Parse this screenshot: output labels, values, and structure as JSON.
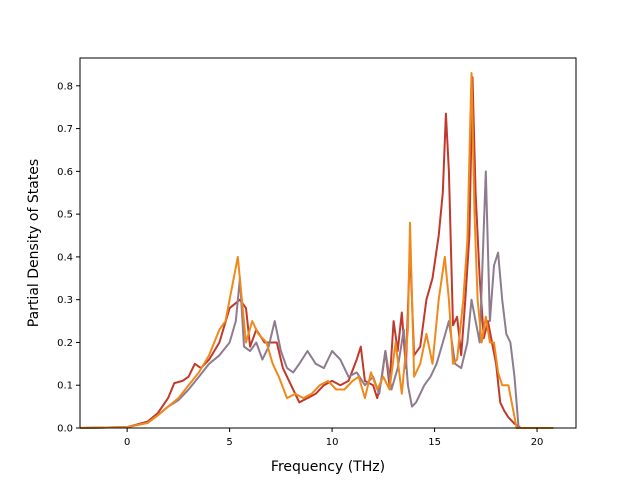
{
  "chart_data": {
    "type": "line",
    "title": "",
    "xlabel": "Frequency (THz)",
    "ylabel": "Partial Density of States",
    "xlim": [
      -2.3,
      21.9
    ],
    "ylim": [
      0.0,
      0.865
    ],
    "xticks": [
      0,
      5,
      10,
      15,
      20
    ],
    "xtick_labels": [
      "0",
      "5",
      "10",
      "15",
      "20"
    ],
    "yticks": [
      0.0,
      0.1,
      0.2,
      0.3,
      0.4,
      0.5,
      0.6,
      0.7,
      0.8
    ],
    "ytick_labels": [
      "0.0",
      "0.1",
      "0.2",
      "0.3",
      "0.4",
      "0.5",
      "0.6",
      "0.7",
      "0.8"
    ],
    "grid": false,
    "legend": "none",
    "series": [
      {
        "color": "#c0392b",
        "x": [
          -2.3,
          0,
          1,
          1.5,
          2,
          2.3,
          2.7,
          3.0,
          3.3,
          3.6,
          4.0,
          4.5,
          5.0,
          5.5,
          5.8,
          6.0,
          6.3,
          6.7,
          7.0,
          7.3,
          7.6,
          8.0,
          8.4,
          8.8,
          9.2,
          9.6,
          10.0,
          10.4,
          10.8,
          11.2,
          11.4,
          11.6,
          12.0,
          12.2,
          12.4,
          12.6,
          12.8,
          13.0,
          13.2,
          13.4,
          13.6,
          13.8,
          14.0,
          14.3,
          14.6,
          14.9,
          15.2,
          15.4,
          15.55,
          15.7,
          15.9,
          16.1,
          16.3,
          16.5,
          16.7,
          16.85,
          17.0,
          17.2,
          17.4,
          17.6,
          17.8,
          18.0,
          18.2,
          18.4,
          18.6,
          18.9,
          19.2,
          20.8
        ],
        "y": [
          0,
          0.002,
          0.015,
          0.035,
          0.07,
          0.105,
          0.11,
          0.12,
          0.15,
          0.14,
          0.16,
          0.2,
          0.28,
          0.3,
          0.28,
          0.19,
          0.23,
          0.2,
          0.2,
          0.2,
          0.14,
          0.1,
          0.06,
          0.07,
          0.08,
          0.1,
          0.11,
          0.1,
          0.11,
          0.16,
          0.19,
          0.11,
          0.1,
          0.07,
          0.11,
          0.18,
          0.1,
          0.25,
          0.18,
          0.27,
          0.14,
          0.42,
          0.17,
          0.19,
          0.3,
          0.35,
          0.45,
          0.55,
          0.735,
          0.6,
          0.24,
          0.26,
          0.17,
          0.3,
          0.45,
          0.82,
          0.55,
          0.35,
          0.21,
          0.25,
          0.2,
          0.15,
          0.06,
          0.04,
          0.025,
          0.01,
          0.0,
          0.0
        ]
      },
      {
        "color": "#8e7b8e",
        "x": [
          -2.3,
          0,
          1,
          1.5,
          2,
          2.5,
          3.0,
          3.5,
          4.0,
          4.5,
          5.0,
          5.3,
          5.5,
          5.7,
          6.0,
          6.3,
          6.6,
          6.9,
          7.2,
          7.5,
          7.8,
          8.1,
          8.4,
          8.8,
          9.2,
          9.6,
          10.0,
          10.4,
          10.8,
          11.2,
          11.6,
          12.0,
          12.3,
          12.6,
          12.9,
          13.2,
          13.5,
          13.7,
          13.9,
          14.1,
          14.3,
          14.5,
          14.8,
          15.1,
          15.4,
          15.7,
          16.0,
          16.3,
          16.6,
          16.8,
          17.0,
          17.2,
          17.5,
          17.7,
          17.9,
          18.1,
          18.3,
          18.5,
          18.7,
          18.9,
          19.1,
          20.8
        ],
        "y": [
          0,
          0.002,
          0.012,
          0.03,
          0.05,
          0.065,
          0.09,
          0.12,
          0.15,
          0.17,
          0.2,
          0.25,
          0.35,
          0.19,
          0.18,
          0.2,
          0.16,
          0.19,
          0.25,
          0.18,
          0.14,
          0.13,
          0.15,
          0.18,
          0.15,
          0.14,
          0.18,
          0.16,
          0.12,
          0.13,
          0.1,
          0.12,
          0.08,
          0.18,
          0.09,
          0.14,
          0.23,
          0.1,
          0.05,
          0.06,
          0.08,
          0.1,
          0.12,
          0.15,
          0.2,
          0.25,
          0.15,
          0.14,
          0.2,
          0.3,
          0.25,
          0.2,
          0.6,
          0.25,
          0.38,
          0.41,
          0.3,
          0.22,
          0.2,
          0.12,
          0.0,
          0.0
        ]
      },
      {
        "color": "#f0891c",
        "x": [
          -2.3,
          0,
          1,
          1.5,
          2,
          2.5,
          3.0,
          3.5,
          4.0,
          4.5,
          4.8,
          5.0,
          5.2,
          5.4,
          5.6,
          5.8,
          6.1,
          6.4,
          6.8,
          7.1,
          7.4,
          7.8,
          8.2,
          8.6,
          9.0,
          9.4,
          9.8,
          10.2,
          10.6,
          11.0,
          11.3,
          11.6,
          11.9,
          12.2,
          12.5,
          12.8,
          13.1,
          13.4,
          13.7,
          13.8,
          14.0,
          14.3,
          14.6,
          14.9,
          15.2,
          15.5,
          15.7,
          15.9,
          16.1,
          16.4,
          16.6,
          16.8,
          16.95,
          17.1,
          17.3,
          17.5,
          17.7,
          17.9,
          18.1,
          18.3,
          18.6,
          18.8,
          19.0,
          20.8
        ],
        "y": [
          0,
          0.002,
          0.012,
          0.03,
          0.05,
          0.07,
          0.1,
          0.13,
          0.17,
          0.23,
          0.25,
          0.3,
          0.35,
          0.4,
          0.3,
          0.2,
          0.25,
          0.22,
          0.2,
          0.15,
          0.12,
          0.07,
          0.08,
          0.07,
          0.08,
          0.1,
          0.11,
          0.09,
          0.09,
          0.11,
          0.12,
          0.07,
          0.13,
          0.09,
          0.12,
          0.09,
          0.2,
          0.08,
          0.23,
          0.48,
          0.12,
          0.15,
          0.22,
          0.15,
          0.3,
          0.4,
          0.3,
          0.15,
          0.16,
          0.3,
          0.44,
          0.83,
          0.5,
          0.3,
          0.2,
          0.26,
          0.2,
          0.2,
          0.13,
          0.1,
          0.1,
          0.05,
          0.0,
          0.0
        ]
      }
    ]
  }
}
